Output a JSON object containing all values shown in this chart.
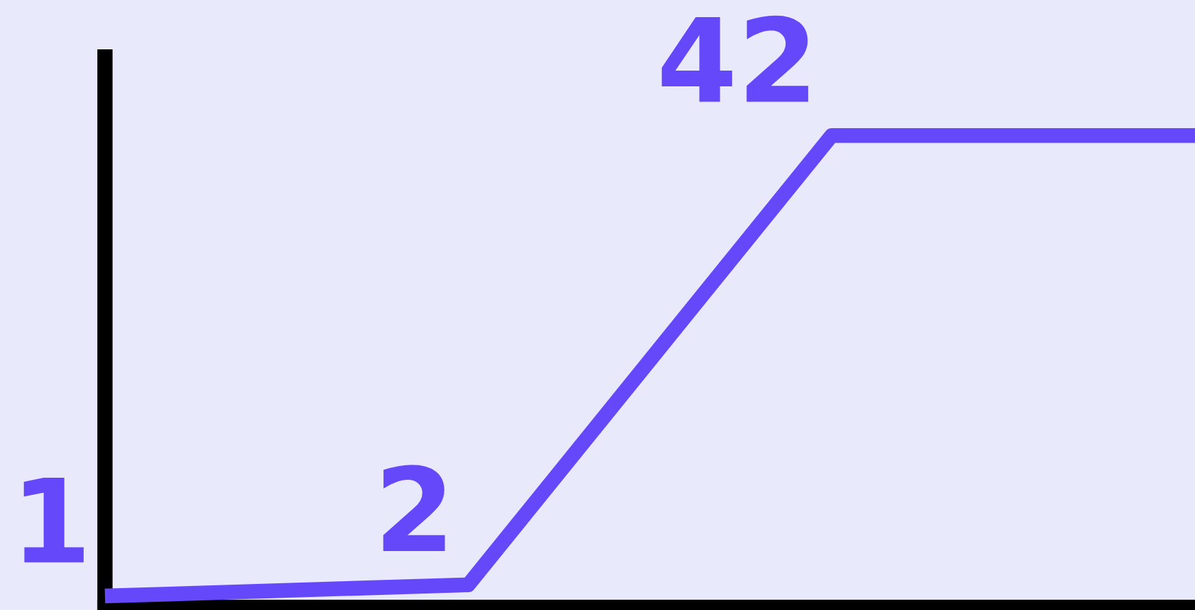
{
  "chart_data": {
    "type": "line",
    "categories": [
      null,
      null,
      null,
      null
    ],
    "values": [
      1,
      2,
      42,
      42
    ],
    "color": "#6448fa",
    "value_labels": [
      "1",
      "2",
      "42",
      null
    ],
    "ylim": [
      0,
      49
    ],
    "line_style": "solid"
  }
}
